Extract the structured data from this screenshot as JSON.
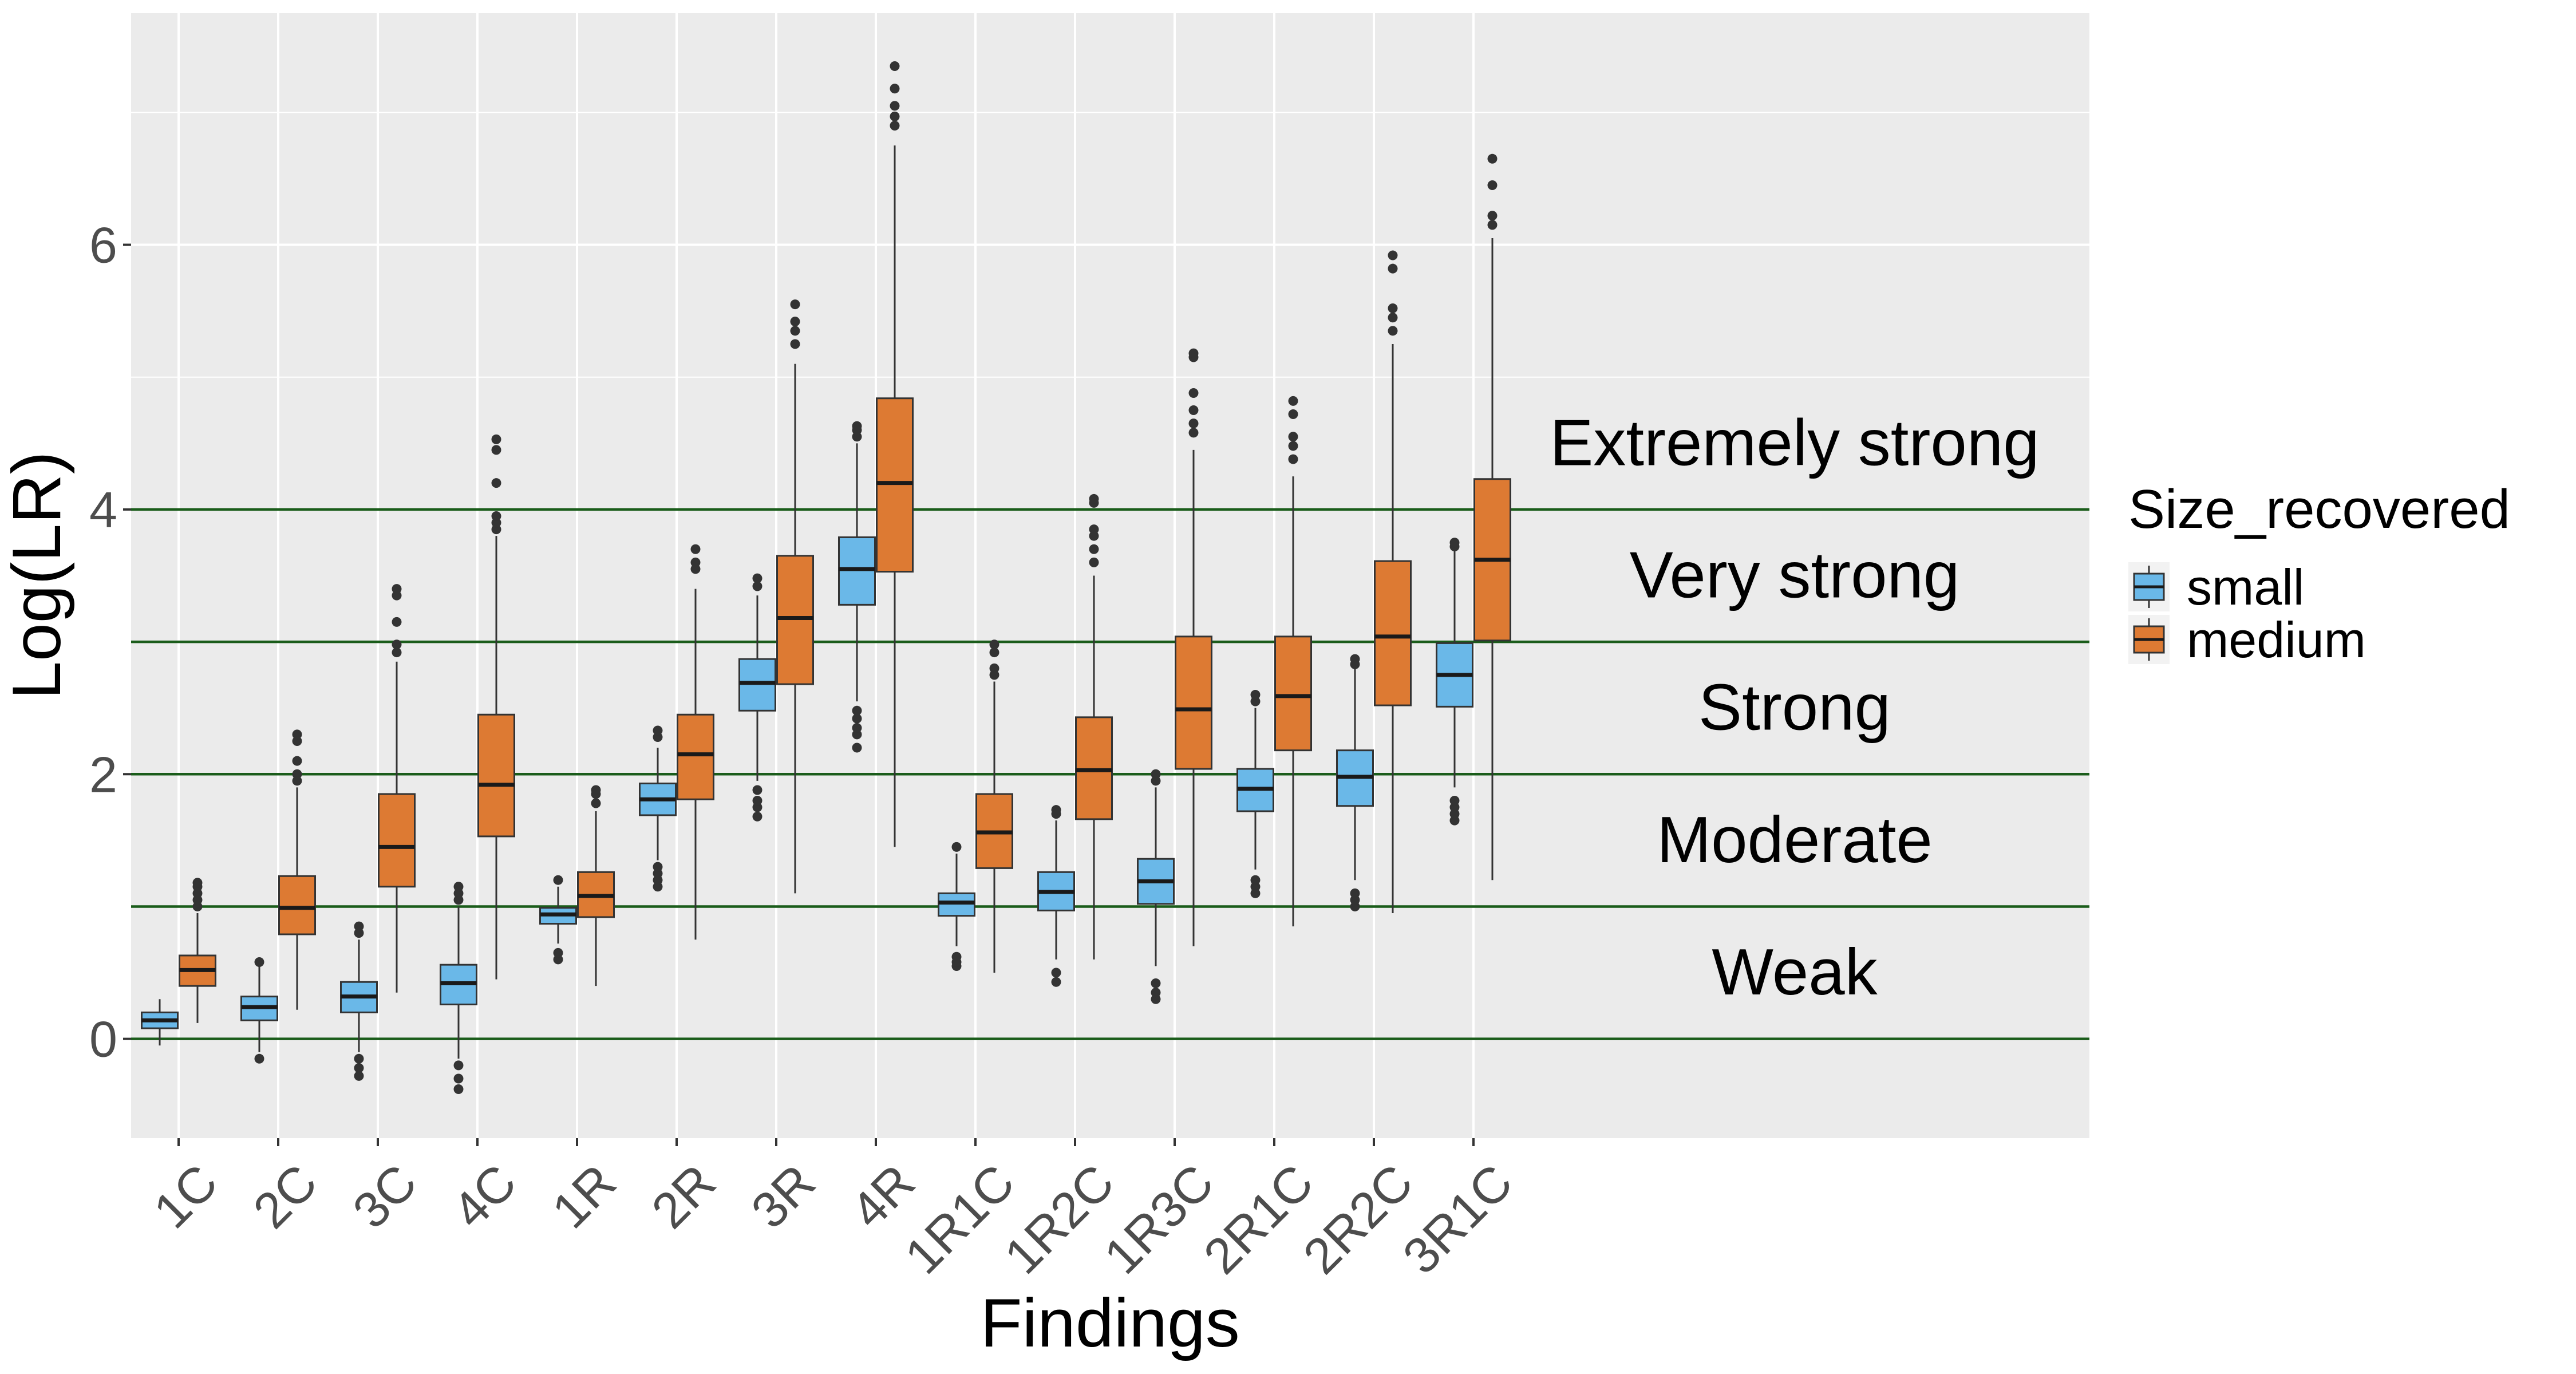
{
  "chart_data": {
    "type": "box",
    "title": "",
    "xlabel": "Findings",
    "ylabel": "Log(LR)",
    "categories": [
      "1C",
      "2C",
      "3C",
      "4C",
      "1R",
      "2R",
      "3R",
      "4R",
      "1R1C",
      "1R2C",
      "1R3C",
      "2R1C",
      "2R2C",
      "3R1C"
    ],
    "ylim": [
      -0.75,
      7.75
    ],
    "yticks": [
      0,
      2,
      4,
      6
    ],
    "grid": true,
    "legend": {
      "title": "Size_recovered",
      "position": "right",
      "entries": [
        {
          "name": "small",
          "color": "#6ab8e8"
        },
        {
          "name": "medium",
          "color": "#dd7a33"
        }
      ]
    },
    "series": [
      {
        "name": "small",
        "color": "#6ab8e8",
        "boxes": [
          {
            "category": "1C",
            "whislo": -0.05,
            "q1": 0.08,
            "med": 0.14,
            "q3": 0.2,
            "whishi": 0.3,
            "outliers": []
          },
          {
            "category": "2C",
            "whislo": -0.1,
            "q1": 0.14,
            "med": 0.24,
            "q3": 0.32,
            "whishi": 0.55,
            "outliers": [
              -0.15,
              0.58
            ]
          },
          {
            "category": "3C",
            "whislo": -0.1,
            "q1": 0.2,
            "med": 0.32,
            "q3": 0.43,
            "whishi": 0.75,
            "outliers": [
              -0.15,
              -0.22,
              -0.28,
              0.8,
              0.85
            ]
          },
          {
            "category": "4C",
            "whislo": -0.15,
            "q1": 0.26,
            "med": 0.42,
            "q3": 0.56,
            "whishi": 1.0,
            "outliers": [
              -0.2,
              -0.3,
              -0.38,
              1.05,
              1.1,
              1.15
            ]
          },
          {
            "category": "1R",
            "whislo": 0.72,
            "q1": 0.87,
            "med": 0.94,
            "q3": 0.99,
            "whishi": 1.15,
            "outliers": [
              0.6,
              0.65,
              1.2
            ]
          },
          {
            "category": "2R",
            "whislo": 1.35,
            "q1": 1.69,
            "med": 1.81,
            "q3": 1.93,
            "whishi": 2.2,
            "outliers": [
              1.15,
              1.2,
              1.25,
              1.3,
              2.28,
              2.33
            ]
          },
          {
            "category": "3R",
            "whislo": 1.95,
            "q1": 2.48,
            "med": 2.69,
            "q3": 2.87,
            "whishi": 3.35,
            "outliers": [
              1.68,
              1.75,
              1.8,
              1.88,
              3.42,
              3.48
            ]
          },
          {
            "category": "4R",
            "whislo": 2.55,
            "q1": 3.28,
            "med": 3.55,
            "q3": 3.79,
            "whishi": 4.5,
            "outliers": [
              2.2,
              2.3,
              2.35,
              2.42,
              2.48,
              4.55,
              4.6,
              4.63
            ]
          },
          {
            "category": "1R1C",
            "whislo": 0.7,
            "q1": 0.93,
            "med": 1.03,
            "q3": 1.1,
            "whishi": 1.4,
            "outliers": [
              0.55,
              0.58,
              0.62,
              1.45
            ]
          },
          {
            "category": "1R2C",
            "whislo": 0.6,
            "q1": 0.97,
            "med": 1.11,
            "q3": 1.26,
            "whishi": 1.65,
            "outliers": [
              0.43,
              0.5,
              1.7,
              1.73
            ]
          },
          {
            "category": "1R3C",
            "whislo": 0.55,
            "q1": 1.02,
            "med": 1.19,
            "q3": 1.36,
            "whishi": 1.9,
            "outliers": [
              0.3,
              0.35,
              0.42,
              1.95,
              2.0
            ]
          },
          {
            "category": "2R1C",
            "whislo": 1.28,
            "q1": 1.72,
            "med": 1.89,
            "q3": 2.04,
            "whishi": 2.5,
            "outliers": [
              1.1,
              1.15,
              1.2,
              2.55,
              2.6
            ]
          },
          {
            "category": "2R2C",
            "whislo": 1.2,
            "q1": 1.76,
            "med": 1.98,
            "q3": 2.18,
            "whishi": 2.8,
            "outliers": [
              1.0,
              1.05,
              1.1,
              2.83,
              2.87
            ]
          },
          {
            "category": "3R1C",
            "whislo": 1.9,
            "q1": 2.51,
            "med": 2.75,
            "q3": 2.99,
            "whishi": 3.7,
            "outliers": [
              1.65,
              1.7,
              1.75,
              1.8,
              3.72,
              3.75
            ]
          }
        ]
      },
      {
        "name": "medium",
        "color": "#dd7a33",
        "boxes": [
          {
            "category": "1C",
            "whislo": 0.12,
            "q1": 0.4,
            "med": 0.52,
            "q3": 0.63,
            "whishi": 0.95,
            "outliers": [
              1.0,
              1.05,
              1.1,
              1.15,
              1.18
            ]
          },
          {
            "category": "2C",
            "whislo": 0.22,
            "q1": 0.79,
            "med": 0.99,
            "q3": 1.23,
            "whishi": 1.9,
            "outliers": [
              1.95,
              2.0,
              2.1,
              2.25,
              2.3
            ]
          },
          {
            "category": "3C",
            "whislo": 0.35,
            "q1": 1.15,
            "med": 1.45,
            "q3": 1.85,
            "whishi": 2.85,
            "outliers": [
              2.92,
              2.98,
              3.15,
              3.35,
              3.4
            ]
          },
          {
            "category": "4C",
            "whislo": 0.45,
            "q1": 1.53,
            "med": 1.92,
            "q3": 2.45,
            "whishi": 3.8,
            "outliers": [
              3.85,
              3.9,
              3.95,
              4.2,
              4.45,
              4.53
            ]
          },
          {
            "category": "1R",
            "whislo": 0.4,
            "q1": 0.92,
            "med": 1.08,
            "q3": 1.26,
            "whishi": 1.72,
            "outliers": [
              1.78,
              1.85,
              1.88
            ]
          },
          {
            "category": "2R",
            "whislo": 0.75,
            "q1": 1.81,
            "med": 2.15,
            "q3": 2.45,
            "whishi": 3.4,
            "outliers": [
              3.55,
              3.6,
              3.7
            ]
          },
          {
            "category": "3R",
            "whislo": 1.1,
            "q1": 2.68,
            "med": 3.18,
            "q3": 3.65,
            "whishi": 5.1,
            "outliers": [
              5.25,
              5.35,
              5.42,
              5.55
            ]
          },
          {
            "category": "4R",
            "whislo": 1.45,
            "q1": 3.53,
            "med": 4.2,
            "q3": 4.84,
            "whishi": 6.75,
            "outliers": [
              6.9,
              6.97,
              7.05,
              7.18,
              7.35
            ]
          },
          {
            "category": "1R1C",
            "whislo": 0.5,
            "q1": 1.29,
            "med": 1.56,
            "q3": 1.85,
            "whishi": 2.7,
            "outliers": [
              2.75,
              2.8,
              2.92,
              2.98
            ]
          },
          {
            "category": "1R2C",
            "whislo": 0.6,
            "q1": 1.66,
            "med": 2.03,
            "q3": 2.43,
            "whishi": 3.5,
            "outliers": [
              3.6,
              3.7,
              3.8,
              3.85,
              4.05,
              4.08
            ]
          },
          {
            "category": "1R3C",
            "whislo": 0.7,
            "q1": 2.04,
            "med": 2.49,
            "q3": 3.04,
            "whishi": 4.45,
            "outliers": [
              4.58,
              4.65,
              4.75,
              4.88,
              5.15,
              5.18
            ]
          },
          {
            "category": "2R1C",
            "whislo": 0.85,
            "q1": 2.18,
            "med": 2.59,
            "q3": 3.04,
            "whishi": 4.25,
            "outliers": [
              4.38,
              4.48,
              4.55,
              4.72,
              4.82
            ]
          },
          {
            "category": "2R2C",
            "whislo": 0.95,
            "q1": 2.52,
            "med": 3.04,
            "q3": 3.61,
            "whishi": 5.25,
            "outliers": [
              5.35,
              5.45,
              5.52,
              5.82,
              5.92
            ]
          },
          {
            "category": "3R1C",
            "whislo": 1.2,
            "q1": 3.01,
            "med": 3.62,
            "q3": 4.23,
            "whishi": 6.05,
            "outliers": [
              6.15,
              6.22,
              6.45,
              6.65
            ]
          }
        ]
      }
    ],
    "reference_lines": [
      0,
      1,
      2,
      3,
      4
    ],
    "reference_line_color": "#1a5c1a",
    "band_labels": [
      {
        "text": "Weak",
        "y": 0.5
      },
      {
        "text": "Moderate",
        "y": 1.5
      },
      {
        "text": "Strong",
        "y": 2.5
      },
      {
        "text": "Very strong",
        "y": 3.5
      },
      {
        "text": "Extremely strong",
        "y": 4.5
      }
    ]
  }
}
